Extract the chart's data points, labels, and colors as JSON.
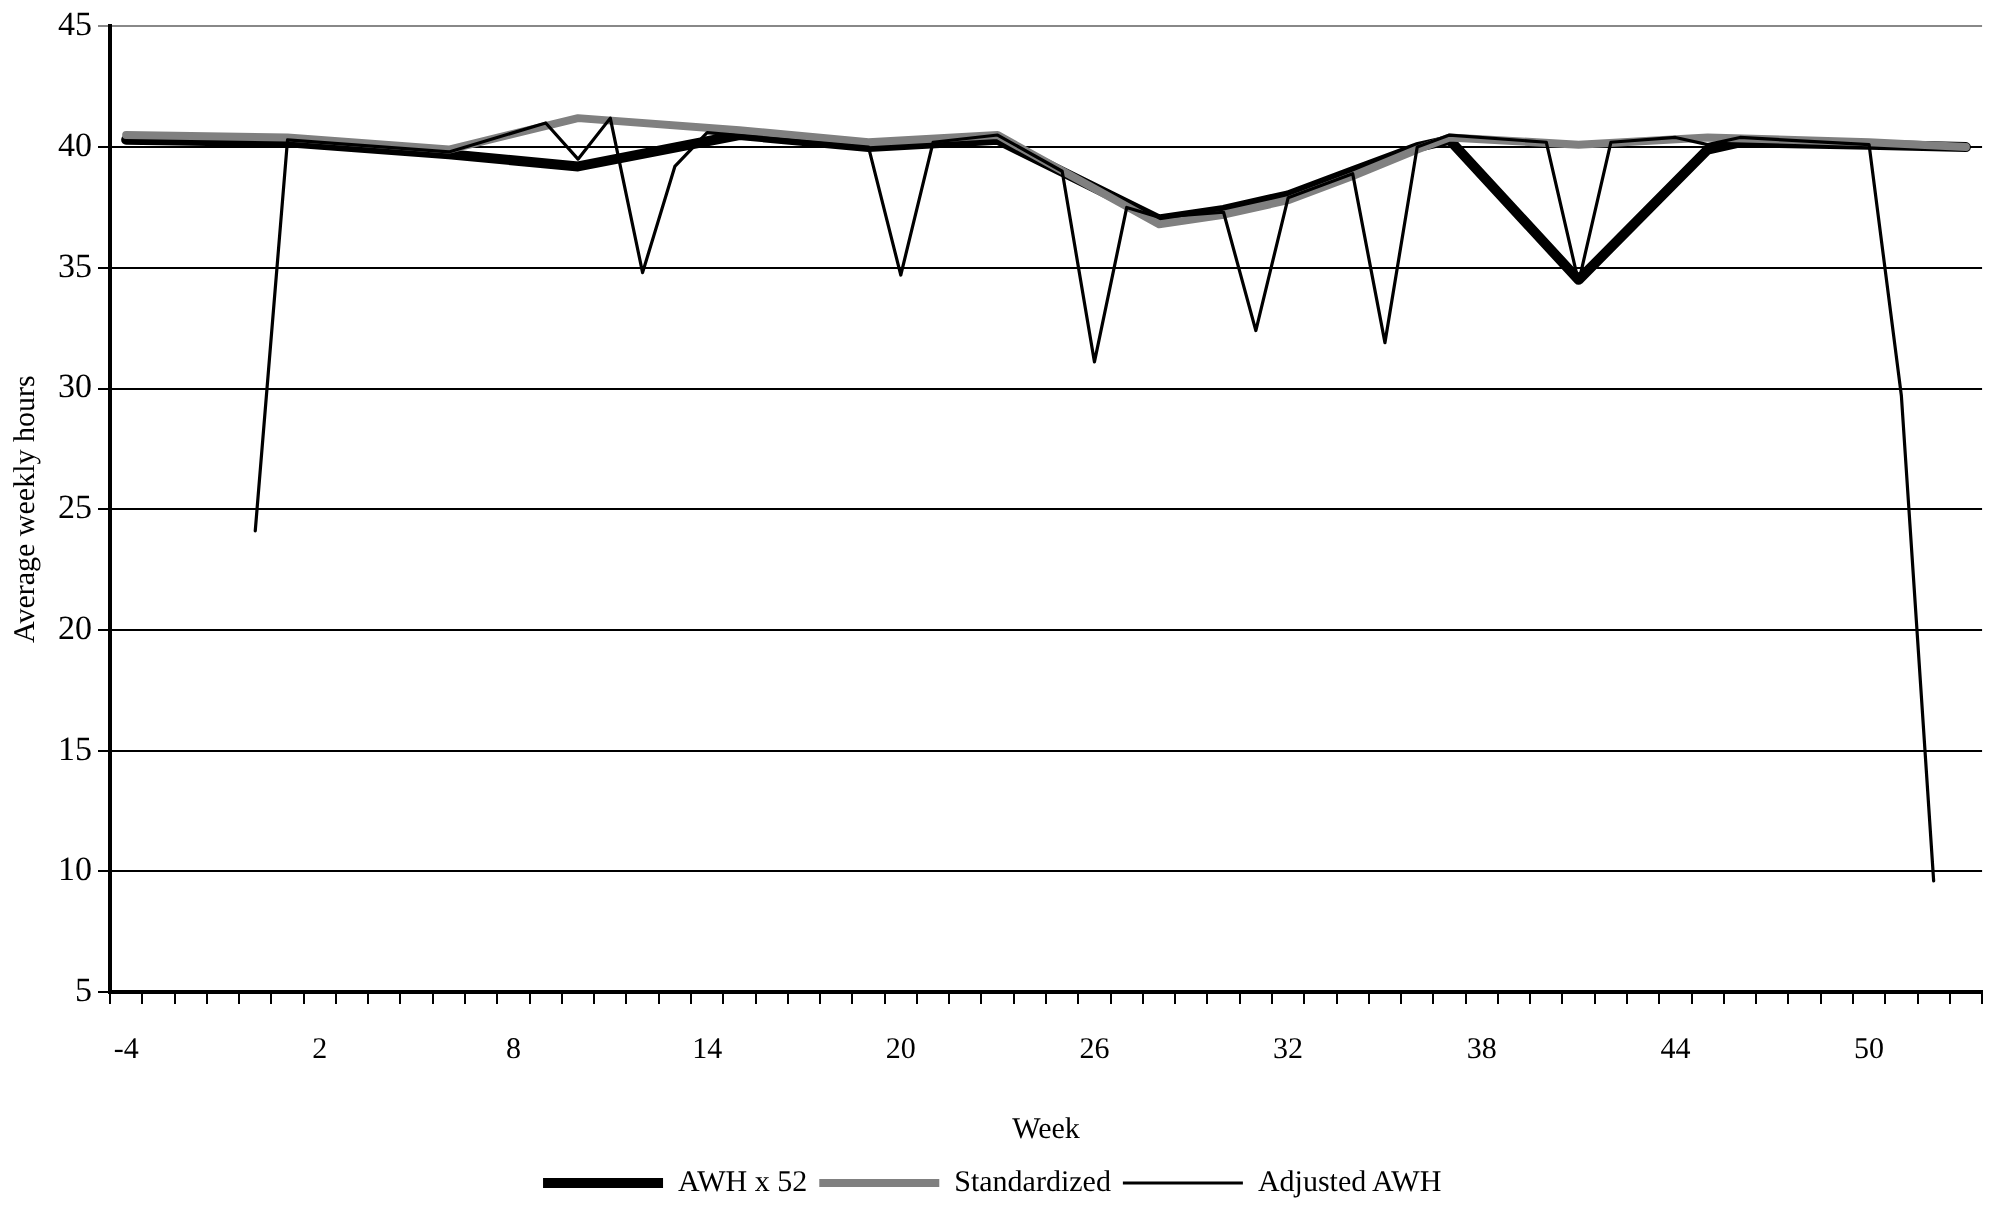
{
  "chart_data": {
    "type": "line",
    "xlabel": "Week",
    "ylabel": "Average weekly hours",
    "categories": [
      "-4",
      null,
      null,
      null,
      null,
      null,
      "2",
      null,
      null,
      null,
      null,
      null,
      "8",
      null,
      null,
      null,
      null,
      null,
      "14",
      null,
      null,
      null,
      null,
      null,
      "20",
      null,
      null,
      null,
      null,
      null,
      "26",
      null,
      null,
      null,
      null,
      null,
      "32",
      null,
      null,
      null,
      null,
      null,
      "38",
      null,
      null,
      null,
      null,
      null,
      "44",
      null,
      null,
      null,
      null,
      null,
      "50",
      null,
      null,
      null
    ],
    "series": [
      {
        "name": "AWH x 52",
        "color": "#000000",
        "values": [
          40.3,
          null,
          null,
          null,
          null,
          40.2,
          null,
          null,
          null,
          null,
          39.7,
          null,
          null,
          null,
          39.2,
          null,
          null,
          null,
          null,
          40.5,
          null,
          null,
          null,
          40.0,
          null,
          null,
          null,
          40.3,
          null,
          null,
          null,
          null,
          37.0,
          null,
          37.4,
          null,
          38.0,
          null,
          39.0,
          null,
          40.0,
          40.3,
          null,
          null,
          null,
          34.5,
          null,
          null,
          null,
          39.9,
          40.2,
          null,
          null,
          null,
          40.1,
          null,
          null,
          40.0
        ]
      },
      {
        "name": "Standardized",
        "color": "#808080",
        "values": [
          40.5,
          null,
          null,
          null,
          null,
          40.4,
          null,
          null,
          null,
          null,
          39.9,
          null,
          null,
          null,
          41.2,
          null,
          null,
          null,
          null,
          40.7,
          null,
          null,
          null,
          40.2,
          null,
          null,
          null,
          40.5,
          null,
          null,
          null,
          null,
          36.8,
          null,
          37.2,
          null,
          37.8,
          null,
          38.8,
          null,
          39.9,
          40.4,
          null,
          null,
          null,
          40.1,
          null,
          null,
          null,
          40.4,
          null,
          null,
          null,
          null,
          40.2,
          null,
          null,
          40.0
        ]
      },
      {
        "name": "Adjusted AWH",
        "color": "#000000",
        "values": [
          null,
          null,
          null,
          null,
          24.1,
          40.3,
          null,
          null,
          null,
          null,
          39.8,
          null,
          null,
          41.0,
          39.5,
          41.2,
          34.8,
          39.2,
          40.6,
          null,
          null,
          null,
          null,
          40.0,
          34.7,
          40.2,
          null,
          40.5,
          null,
          39.0,
          31.1,
          37.5,
          37.1,
          null,
          37.3,
          32.4,
          37.9,
          null,
          38.9,
          31.9,
          40.0,
          40.5,
          null,
          null,
          40.2,
          34.4,
          40.2,
          null,
          40.4,
          40.1,
          40.4,
          null,
          null,
          null,
          40.1,
          29.7,
          9.6,
          null
        ]
      }
    ],
    "ylim": [
      5,
      45
    ],
    "yticks": [
      5,
      10,
      15,
      20,
      25,
      30,
      35,
      40,
      45
    ],
    "grid": "y",
    "legend": "bottom"
  }
}
